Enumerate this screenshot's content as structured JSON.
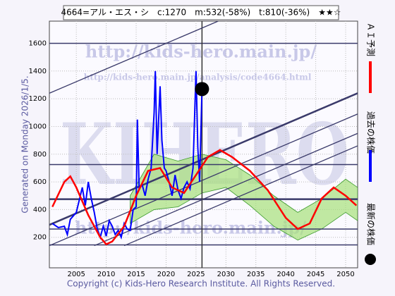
{
  "chart_data": {
    "type": "line",
    "title": "4664=アル・エス・シ　c:1270　m:532(-58%)　t:810(-36%)　★★☆",
    "generated": "Generated on Monday 2026/1/5.",
    "watermarks": [
      "http://kids-hero.main.jp/",
      "http://kids-hero.main.jp/analysis/code4664.html",
      "KIHERO",
      "http://kids-hero.main.jp/"
    ],
    "copyright": "Copyright (c) Kids-Hero Research Institute. All Rights Reserved.",
    "xlim": [
      2000.5,
      2052
    ],
    "ylim": [
      -20,
      1760
    ],
    "xticks": [
      2005,
      2010,
      2015,
      2020,
      2025,
      2030,
      2035,
      2040,
      2045,
      2050
    ],
    "yticks": [
      200,
      400,
      600,
      800,
      1000,
      1200,
      1400,
      1600
    ],
    "grid": true,
    "series": [
      {
        "name": "過去の株価",
        "color": "#0000ff",
        "x": [
          2001,
          2002,
          2003,
          2003.5,
          2004,
          2005,
          2006,
          2006.5,
          2007,
          2007.5,
          2008,
          2008.5,
          2009,
          2009.5,
          2010,
          2010.5,
          2011,
          2011.5,
          2012,
          2012.5,
          2013,
          2013.5,
          2014,
          2014.5,
          2015,
          2015.2,
          2015.5,
          2016,
          2016.5,
          2017,
          2017.5,
          2018,
          2018.2,
          2018.5,
          2019,
          2019.3,
          2019.7,
          2020,
          2020.5,
          2021,
          2021.5,
          2022,
          2022.5,
          2023,
          2023.5,
          2024,
          2024.5,
          2025,
          2025.3,
          2025.6,
          2026
        ],
        "values": [
          300,
          270,
          280,
          220,
          330,
          380,
          560,
          430,
          600,
          480,
          380,
          260,
          200,
          280,
          210,
          320,
          280,
          220,
          250,
          200,
          300,
          260,
          250,
          400,
          420,
          1050,
          550,
          580,
          500,
          620,
          700,
          1100,
          1400,
          800,
          1290,
          900,
          700,
          680,
          600,
          500,
          650,
          540,
          480,
          560,
          600,
          550,
          700,
          1400,
          850,
          600,
          1270
        ]
      },
      {
        "name": "ＡＩ予測",
        "color": "#ff0000",
        "x": [
          2001,
          2003,
          2004,
          2005,
          2007,
          2009,
          2010,
          2011,
          2013,
          2015,
          2017,
          2019,
          2021,
          2023,
          2025,
          2027,
          2029,
          2031,
          2034,
          2037,
          2040,
          2042,
          2044,
          2046,
          2048,
          2050,
          2051.8
        ],
        "values": [
          420,
          600,
          640,
          560,
          360,
          200,
          150,
          170,
          280,
          500,
          680,
          700,
          560,
          520,
          650,
          780,
          830,
          780,
          680,
          540,
          340,
          260,
          300,
          480,
          560,
          500,
          430
        ]
      }
    ],
    "band": {
      "color": "#a6e07a",
      "x": [
        2014,
        2018,
        2022,
        2026,
        2030,
        2034,
        2038,
        2042,
        2046,
        2050,
        2052
      ],
      "upper": [
        500,
        800,
        750,
        800,
        760,
        650,
        500,
        380,
        480,
        620,
        560
      ],
      "lower": [
        300,
        400,
        420,
        520,
        560,
        430,
        280,
        180,
        260,
        380,
        320
      ]
    },
    "trend_lines": [
      {
        "x": [
          2000.5,
          2028.7
        ],
        "values": [
          1240,
          1760
        ]
      },
      {
        "x": [
          2000.5,
          2052
        ],
        "values": [
          290,
          1240
        ]
      },
      {
        "x": [
          2000.5,
          2052
        ],
        "values": [
          140,
          1090
        ]
      },
      {
        "x": [
          2008,
          2052
        ],
        "values": [
          140,
          950
        ]
      },
      {
        "x": [
          2013,
          2052
        ],
        "values": [
          140,
          860
        ]
      }
    ],
    "hlines": [
      1600,
      725,
      475,
      260,
      145
    ],
    "vline": 2026,
    "latest": {
      "name": "最新の株価",
      "x": 2026,
      "value": 1270
    }
  }
}
